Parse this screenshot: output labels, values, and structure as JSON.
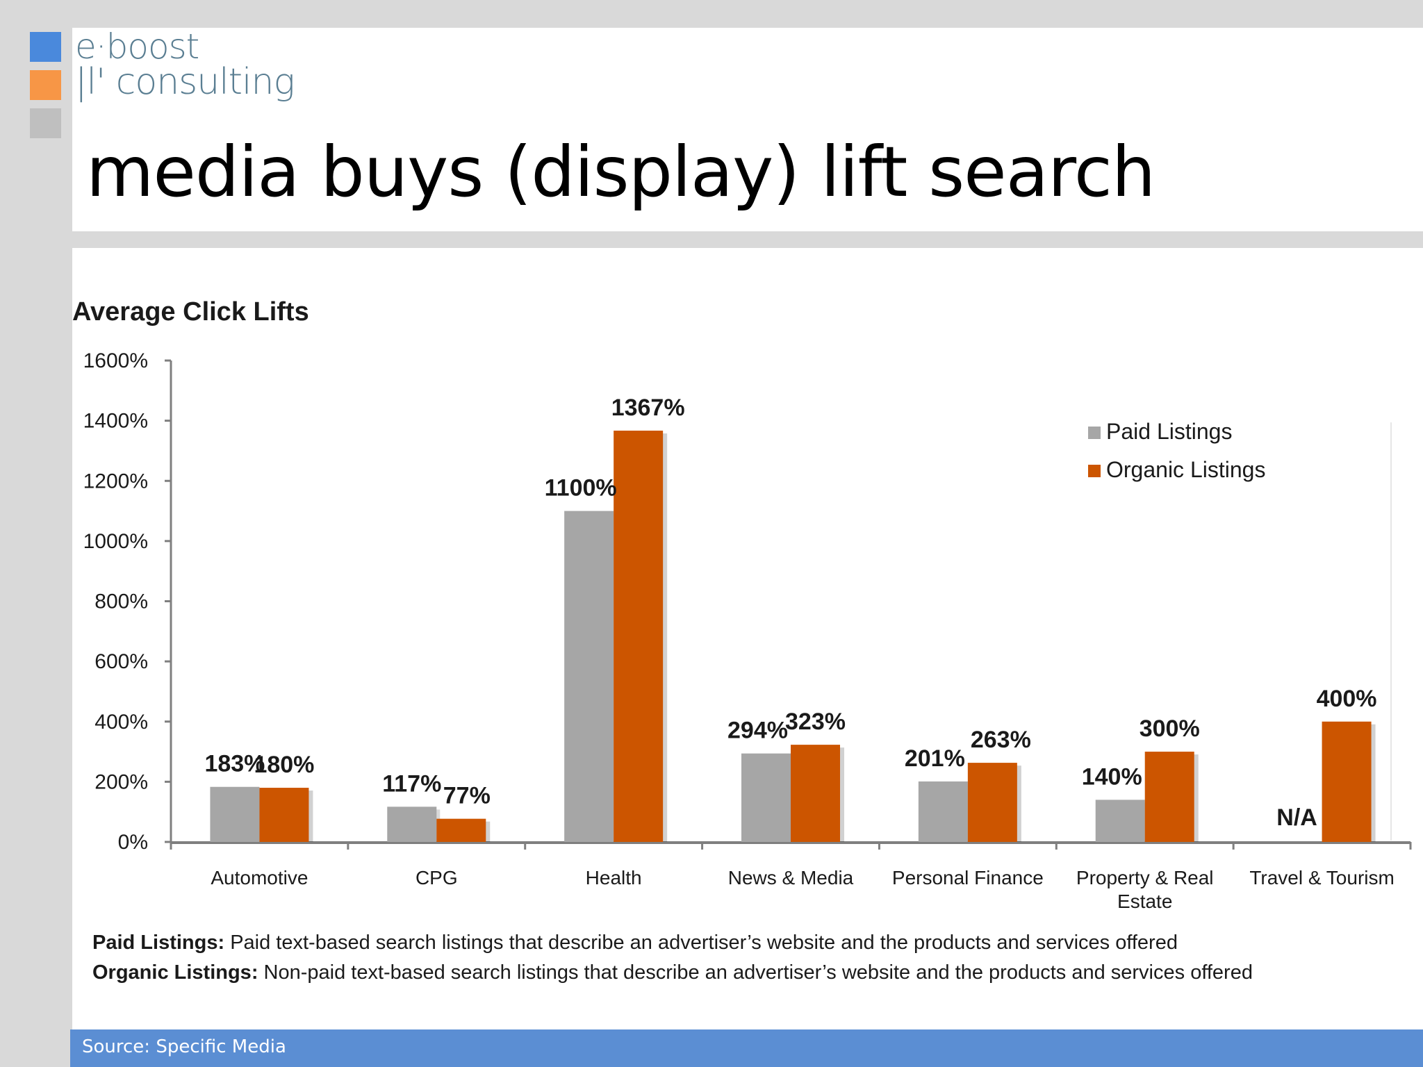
{
  "logo": {
    "line1": "e·boost",
    "line2": "|l' consulting",
    "colors": [
      "#4a89dc",
      "#f79646",
      "#bfbfbf"
    ]
  },
  "slide_title": "media buys (display) lift search",
  "chart_data": {
    "type": "bar",
    "title": "Average Click Lifts",
    "xlabel": "",
    "ylabel": "",
    "ylim": [
      0,
      1600
    ],
    "yticks": [
      "0%",
      "200%",
      "400%",
      "600%",
      "800%",
      "1000%",
      "1200%",
      "1400%",
      "1600%"
    ],
    "categories": [
      "Automotive",
      "CPG",
      "Health",
      "News & Media",
      "Personal Finance",
      "Property & Real Estate",
      "Travel & Tourism"
    ],
    "category_lines": [
      [
        "Automotive"
      ],
      [
        "CPG"
      ],
      [
        "Health"
      ],
      [
        "News & Media"
      ],
      [
        "Personal Finance"
      ],
      [
        "Property & Real",
        "Estate"
      ],
      [
        "Travel & Tourism"
      ]
    ],
    "series": [
      {
        "name": "Paid Listings",
        "color": "#a6a6a6",
        "values": [
          183,
          117,
          1100,
          294,
          201,
          140,
          null
        ],
        "labels": [
          "183%",
          "117%",
          "1100%",
          "294%",
          "201%",
          "140%",
          "N/A"
        ]
      },
      {
        "name": "Organic Listings",
        "color": "#cc5500",
        "values": [
          180,
          77,
          1367,
          323,
          263,
          300,
          400
        ],
        "labels": [
          "180%",
          "77%",
          "1367%",
          "323%",
          "263%",
          "300%",
          "400%"
        ]
      }
    ],
    "legend": "top-right",
    "grid": false
  },
  "definitions": [
    {
      "term": "Paid Listings:",
      "text": " Paid text-based search listings that describe an advertiser’s website and the products and services offered"
    },
    {
      "term": "Organic Listings:",
      "text": "  Non-paid text-based search listings that describe an advertiser’s website and the products and services offered"
    }
  ],
  "source": "Source: Specific Media"
}
